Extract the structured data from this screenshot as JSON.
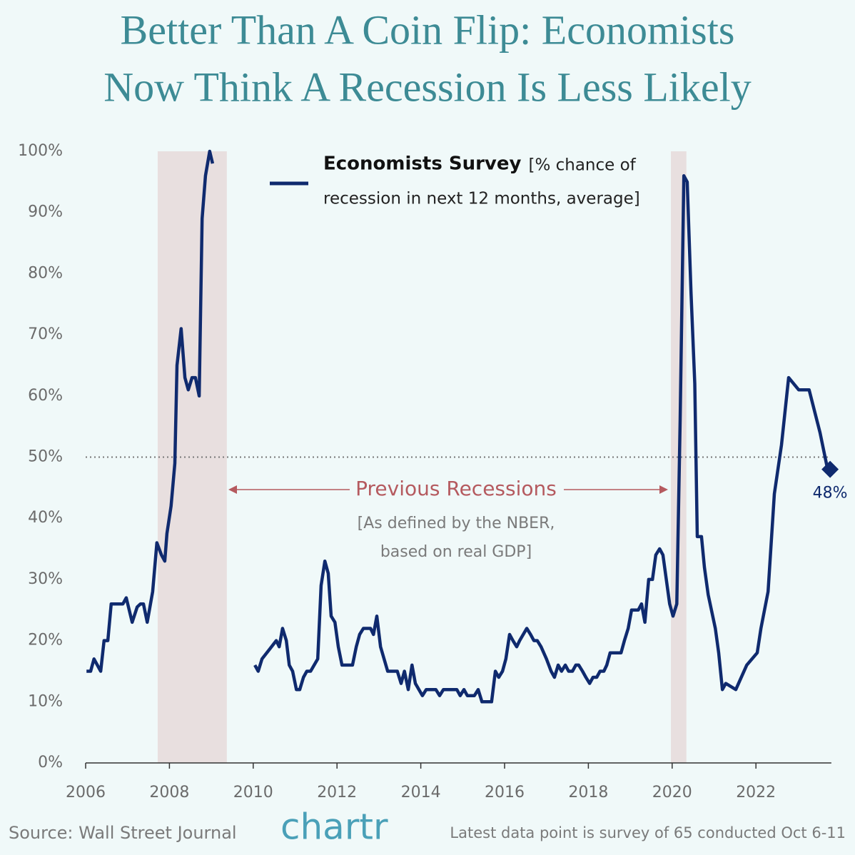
{
  "chart_data": {
    "type": "line",
    "title": [
      "Better Than A Coin Flip: Economists",
      "Now Think A Recession Is Less Likely"
    ],
    "x": [
      2006.02,
      2006.12,
      2006.2,
      2006.36,
      2006.44,
      2006.53,
      2006.61,
      2006.89,
      2006.97,
      2007.11,
      2007.23,
      2007.31,
      2007.38,
      2007.47,
      2007.6,
      2007.7,
      2007.81,
      2007.89,
      2007.94,
      2008.04,
      2008.13,
      2008.18,
      2008.28,
      2008.37,
      2008.45,
      2008.54,
      2008.62,
      2008.71,
      2008.78,
      2008.86,
      2008.96,
      2009.03,
      2009.5,
      2010.04,
      2010.12,
      2010.21,
      2010.38,
      2010.55,
      2010.62,
      2010.7,
      2010.79,
      2010.86,
      2010.94,
      2011.03,
      2011.11,
      2011.2,
      2011.28,
      2011.37,
      2011.54,
      2011.62,
      2011.71,
      2011.79,
      2011.86,
      2011.95,
      2012.03,
      2012.12,
      2012.37,
      2012.46,
      2012.54,
      2012.63,
      2012.8,
      2012.87,
      2012.95,
      2013.04,
      2013.21,
      2013.44,
      2013.53,
      2013.61,
      2013.7,
      2013.79,
      2013.87,
      2014.04,
      2014.13,
      2014.36,
      2014.45,
      2014.54,
      2014.86,
      2014.94,
      2015.03,
      2015.11,
      2015.28,
      2015.37,
      2015.46,
      2015.69,
      2015.78,
      2015.86,
      2015.95,
      2016.03,
      2016.12,
      2016.2,
      2016.29,
      2016.36,
      2016.53,
      2016.62,
      2016.7,
      2016.78,
      2016.87,
      2017.0,
      2017.11,
      2017.19,
      2017.28,
      2017.36,
      2017.45,
      2017.53,
      2017.62,
      2017.7,
      2017.77,
      2017.86,
      2017.94,
      2018.03,
      2018.11,
      2018.2,
      2018.28,
      2018.37,
      2018.44,
      2018.52,
      2018.78,
      2018.86,
      2018.95,
      2019.03,
      2019.19,
      2019.27,
      2019.35,
      2019.44,
      2019.53,
      2019.61,
      2019.7,
      2019.78,
      2019.85,
      2019.94,
      2020.02,
      2020.11,
      2020.19,
      2020.28,
      2020.36,
      2020.45,
      2020.54,
      2020.6,
      2020.7,
      2020.77,
      2020.86,
      2021.03,
      2021.11,
      2021.2,
      2021.28,
      2021.52,
      2021.78,
      2022.03,
      2022.12,
      2022.29,
      2022.44,
      2022.61,
      2022.78,
      2023.02,
      2023.27,
      2023.53,
      2023.71
    ],
    "series": [
      {
        "name": "Economists Survey",
        "color": "#0f2a6e",
        "values": [
          15,
          15,
          17,
          15,
          20,
          20,
          26,
          26,
          27,
          23,
          25.5,
          26,
          26,
          23,
          28,
          36,
          34,
          33,
          37.5,
          42,
          49,
          65,
          71,
          63,
          61,
          63,
          63,
          60,
          89,
          96,
          100,
          98,
          null,
          16,
          15,
          17,
          18.5,
          20,
          19,
          22,
          20,
          16,
          15,
          12,
          12,
          14,
          15,
          15,
          17,
          29,
          33,
          31,
          24,
          23,
          19,
          16,
          16,
          19,
          21,
          22,
          22,
          21,
          24,
          19,
          15,
          15,
          13,
          15,
          12,
          16,
          13,
          11,
          12,
          12,
          11,
          12,
          12,
          11,
          12,
          11,
          11,
          12,
          10,
          10,
          15,
          14,
          15,
          17,
          21,
          20,
          19,
          20,
          22,
          21,
          20,
          20,
          19,
          17,
          15,
          14,
          16,
          15,
          16,
          15,
          15,
          16,
          16,
          15,
          14,
          13,
          14,
          14,
          15,
          15,
          16,
          18,
          18,
          20,
          22,
          25,
          25,
          26,
          23,
          30,
          30,
          34,
          35,
          34,
          30.5,
          26,
          24,
          26,
          56,
          96,
          95,
          77,
          62,
          37,
          37,
          32,
          27.5,
          22,
          18,
          12,
          13,
          12,
          16,
          18,
          22,
          28,
          44,
          52,
          63,
          61,
          61,
          54,
          48
        ]
      }
    ],
    "legend": "top-center",
    "legend_note": [
      "[% chance of",
      "recession in next 12 months, average]"
    ],
    "end_point": {
      "x": 2023.77,
      "value": 48,
      "label": "48%"
    },
    "recessions": [
      {
        "start": 2007.72,
        "end": 2009.37
      },
      {
        "start": 2019.97,
        "end": 2020.34
      }
    ],
    "reference_line": 50,
    "annotation": {
      "title": "Previous Recessions",
      "lines": [
        "[As defined by the NBER,",
        "based on real GDP]"
      ]
    },
    "xlim": [
      2006,
      2023.8
    ],
    "xticks": [
      2006,
      2008,
      2010,
      2012,
      2014,
      2016,
      2018,
      2020,
      2022
    ],
    "ylim": [
      0,
      100
    ],
    "yticks": [
      {
        "value": 0,
        "label": "0%"
      },
      {
        "value": 10,
        "label": "10%"
      },
      {
        "value": 20,
        "label": "20%"
      },
      {
        "value": 30,
        "label": "30%"
      },
      {
        "value": 40,
        "label": "40%"
      },
      {
        "value": 50,
        "label": "50%"
      },
      {
        "value": 60,
        "label": "60%"
      },
      {
        "value": 70,
        "label": "70%"
      },
      {
        "value": 80,
        "label": "80%"
      },
      {
        "value": 90,
        "label": "90%"
      },
      {
        "value": 100,
        "label": "100%"
      }
    ],
    "source": "Source: Wall Street Journal",
    "brand": "chartr",
    "footnote": "Latest data point is survey of 65 conducted Oct 6-11"
  }
}
